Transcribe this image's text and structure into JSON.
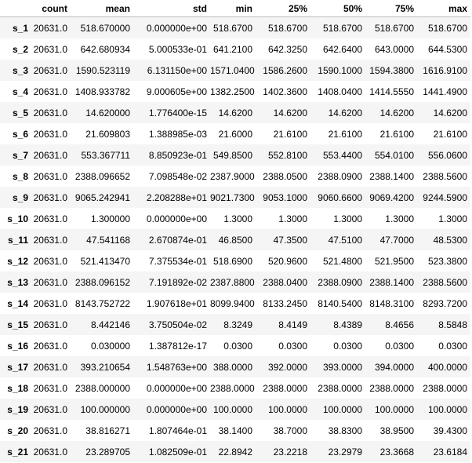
{
  "table": {
    "columns": [
      "count",
      "mean",
      "std",
      "min",
      "25%",
      "50%",
      "75%",
      "max"
    ],
    "rows": [
      {
        "label": "s_1",
        "cells": [
          "20631.0",
          "518.670000",
          "0.000000e+00",
          "518.6700",
          "518.6700",
          "518.6700",
          "518.6700",
          "518.6700"
        ]
      },
      {
        "label": "s_2",
        "cells": [
          "20631.0",
          "642.680934",
          "5.000533e-01",
          "641.2100",
          "642.3250",
          "642.6400",
          "643.0000",
          "644.5300"
        ]
      },
      {
        "label": "s_3",
        "cells": [
          "20631.0",
          "1590.523119",
          "6.131150e+00",
          "1571.0400",
          "1586.2600",
          "1590.1000",
          "1594.3800",
          "1616.9100"
        ]
      },
      {
        "label": "s_4",
        "cells": [
          "20631.0",
          "1408.933782",
          "9.000605e+00",
          "1382.2500",
          "1402.3600",
          "1408.0400",
          "1414.5550",
          "1441.4900"
        ]
      },
      {
        "label": "s_5",
        "cells": [
          "20631.0",
          "14.620000",
          "1.776400e-15",
          "14.6200",
          "14.6200",
          "14.6200",
          "14.6200",
          "14.6200"
        ]
      },
      {
        "label": "s_6",
        "cells": [
          "20631.0",
          "21.609803",
          "1.388985e-03",
          "21.6000",
          "21.6100",
          "21.6100",
          "21.6100",
          "21.6100"
        ]
      },
      {
        "label": "s_7",
        "cells": [
          "20631.0",
          "553.367711",
          "8.850923e-01",
          "549.8500",
          "552.8100",
          "553.4400",
          "554.0100",
          "556.0600"
        ]
      },
      {
        "label": "s_8",
        "cells": [
          "20631.0",
          "2388.096652",
          "7.098548e-02",
          "2387.9000",
          "2388.0500",
          "2388.0900",
          "2388.1400",
          "2388.5600"
        ]
      },
      {
        "label": "s_9",
        "cells": [
          "20631.0",
          "9065.242941",
          "2.208288e+01",
          "9021.7300",
          "9053.1000",
          "9060.6600",
          "9069.4200",
          "9244.5900"
        ]
      },
      {
        "label": "s_10",
        "cells": [
          "20631.0",
          "1.300000",
          "0.000000e+00",
          "1.3000",
          "1.3000",
          "1.3000",
          "1.3000",
          "1.3000"
        ]
      },
      {
        "label": "s_11",
        "cells": [
          "20631.0",
          "47.541168",
          "2.670874e-01",
          "46.8500",
          "47.3500",
          "47.5100",
          "47.7000",
          "48.5300"
        ]
      },
      {
        "label": "s_12",
        "cells": [
          "20631.0",
          "521.413470",
          "7.375534e-01",
          "518.6900",
          "520.9600",
          "521.4800",
          "521.9500",
          "523.3800"
        ]
      },
      {
        "label": "s_13",
        "cells": [
          "20631.0",
          "2388.096152",
          "7.191892e-02",
          "2387.8800",
          "2388.0400",
          "2388.0900",
          "2388.1400",
          "2388.5600"
        ]
      },
      {
        "label": "s_14",
        "cells": [
          "20631.0",
          "8143.752722",
          "1.907618e+01",
          "8099.9400",
          "8133.2450",
          "8140.5400",
          "8148.3100",
          "8293.7200"
        ]
      },
      {
        "label": "s_15",
        "cells": [
          "20631.0",
          "8.442146",
          "3.750504e-02",
          "8.3249",
          "8.4149",
          "8.4389",
          "8.4656",
          "8.5848"
        ]
      },
      {
        "label": "s_16",
        "cells": [
          "20631.0",
          "0.030000",
          "1.387812e-17",
          "0.0300",
          "0.0300",
          "0.0300",
          "0.0300",
          "0.0300"
        ]
      },
      {
        "label": "s_17",
        "cells": [
          "20631.0",
          "393.210654",
          "1.548763e+00",
          "388.0000",
          "392.0000",
          "393.0000",
          "394.0000",
          "400.0000"
        ]
      },
      {
        "label": "s_18",
        "cells": [
          "20631.0",
          "2388.000000",
          "0.000000e+00",
          "2388.0000",
          "2388.0000",
          "2388.0000",
          "2388.0000",
          "2388.0000"
        ]
      },
      {
        "label": "s_19",
        "cells": [
          "20631.0",
          "100.000000",
          "0.000000e+00",
          "100.0000",
          "100.0000",
          "100.0000",
          "100.0000",
          "100.0000"
        ]
      },
      {
        "label": "s_20",
        "cells": [
          "20631.0",
          "38.816271",
          "1.807464e-01",
          "38.1400",
          "38.7000",
          "38.8300",
          "38.9500",
          "39.4300"
        ]
      },
      {
        "label": "s_21",
        "cells": [
          "20631.0",
          "23.289705",
          "1.082509e-01",
          "22.8942",
          "23.2218",
          "23.2979",
          "23.3668",
          "23.6184"
        ]
      }
    ]
  }
}
